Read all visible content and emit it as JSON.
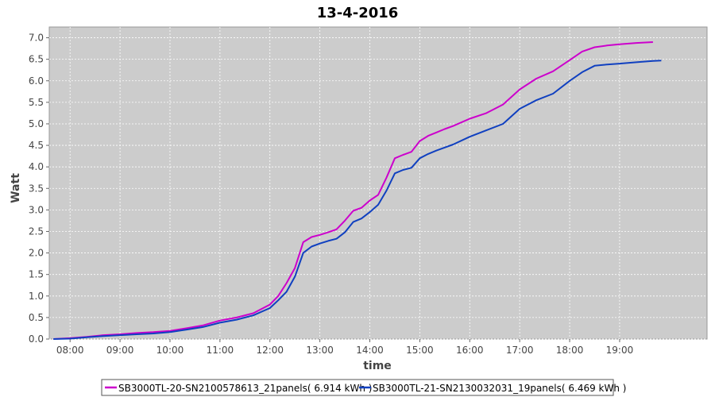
{
  "chart_data": {
    "type": "line",
    "title": "13-4-2016",
    "xlabel": "time",
    "ylabel": "Watt",
    "xlim": [
      "07:35",
      "20:45"
    ],
    "ylim": [
      0,
      7.25
    ],
    "x_ticks": [
      "08:00",
      "09:00",
      "10:00",
      "11:00",
      "12:00",
      "13:00",
      "14:00",
      "15:00",
      "16:00",
      "17:00",
      "18:00",
      "19:00"
    ],
    "y_ticks": [
      "0.0",
      "0.5",
      "1.0",
      "1.5",
      "2.0",
      "2.5",
      "3.0",
      "3.5",
      "4.0",
      "4.5",
      "5.0",
      "5.5",
      "6.0",
      "6.5",
      "7.0"
    ],
    "grid": true,
    "legend_position": "bottom",
    "colors": {
      "plot_bg": "#cccccc",
      "grid": "#ffffff"
    },
    "series": [
      {
        "name": "SB3000TL-20-SN2100578613_21panels( 6.914 kWh )",
        "color": "#cc00cc",
        "x": [
          "07:40",
          "08:00",
          "08:20",
          "08:40",
          "09:00",
          "09:20",
          "09:40",
          "10:00",
          "10:20",
          "10:40",
          "11:00",
          "11:20",
          "11:40",
          "12:00",
          "12:10",
          "12:20",
          "12:30",
          "12:40",
          "12:50",
          "13:00",
          "13:10",
          "13:20",
          "13:30",
          "13:40",
          "13:50",
          "14:00",
          "14:10",
          "14:20",
          "14:30",
          "14:40",
          "14:50",
          "15:00",
          "15:10",
          "15:20",
          "15:30",
          "15:40",
          "16:00",
          "16:20",
          "16:40",
          "17:00",
          "17:20",
          "17:40",
          "18:00",
          "18:15",
          "18:30",
          "18:45",
          "19:00",
          "19:20",
          "19:40"
        ],
        "y": [
          0.0,
          0.02,
          0.05,
          0.09,
          0.11,
          0.14,
          0.16,
          0.19,
          0.25,
          0.32,
          0.43,
          0.5,
          0.6,
          0.8,
          1.0,
          1.3,
          1.65,
          2.25,
          2.37,
          2.42,
          2.48,
          2.55,
          2.75,
          2.98,
          3.05,
          3.22,
          3.35,
          3.75,
          4.2,
          4.28,
          4.35,
          4.6,
          4.72,
          4.8,
          4.88,
          4.95,
          5.12,
          5.25,
          5.45,
          5.8,
          6.05,
          6.22,
          6.48,
          6.68,
          6.78,
          6.82,
          6.85,
          6.88,
          6.9
        ]
      },
      {
        "name": "SB3000TL-21-SN2130032031_19panels( 6.469 kWh )",
        "color": "#1040c0",
        "x": [
          "07:40",
          "08:00",
          "08:20",
          "08:40",
          "09:00",
          "09:20",
          "09:40",
          "10:00",
          "10:20",
          "10:40",
          "11:00",
          "11:20",
          "11:40",
          "12:00",
          "12:10",
          "12:20",
          "12:30",
          "12:40",
          "12:50",
          "13:00",
          "13:10",
          "13:20",
          "13:30",
          "13:40",
          "13:50",
          "14:00",
          "14:10",
          "14:20",
          "14:30",
          "14:40",
          "14:50",
          "15:00",
          "15:10",
          "15:20",
          "15:30",
          "15:40",
          "16:00",
          "16:20",
          "16:40",
          "17:00",
          "17:20",
          "17:40",
          "18:00",
          "18:15",
          "18:30",
          "18:45",
          "19:00",
          "19:20",
          "19:40",
          "19:50"
        ],
        "y": [
          0.0,
          0.01,
          0.04,
          0.07,
          0.09,
          0.11,
          0.13,
          0.16,
          0.22,
          0.28,
          0.38,
          0.45,
          0.55,
          0.72,
          0.9,
          1.1,
          1.45,
          2.0,
          2.15,
          2.22,
          2.28,
          2.33,
          2.48,
          2.72,
          2.8,
          2.95,
          3.12,
          3.45,
          3.85,
          3.93,
          3.98,
          4.2,
          4.3,
          4.38,
          4.45,
          4.52,
          4.7,
          4.85,
          5.0,
          5.35,
          5.55,
          5.7,
          6.0,
          6.2,
          6.35,
          6.38,
          6.4,
          6.43,
          6.46,
          6.47
        ]
      }
    ]
  }
}
